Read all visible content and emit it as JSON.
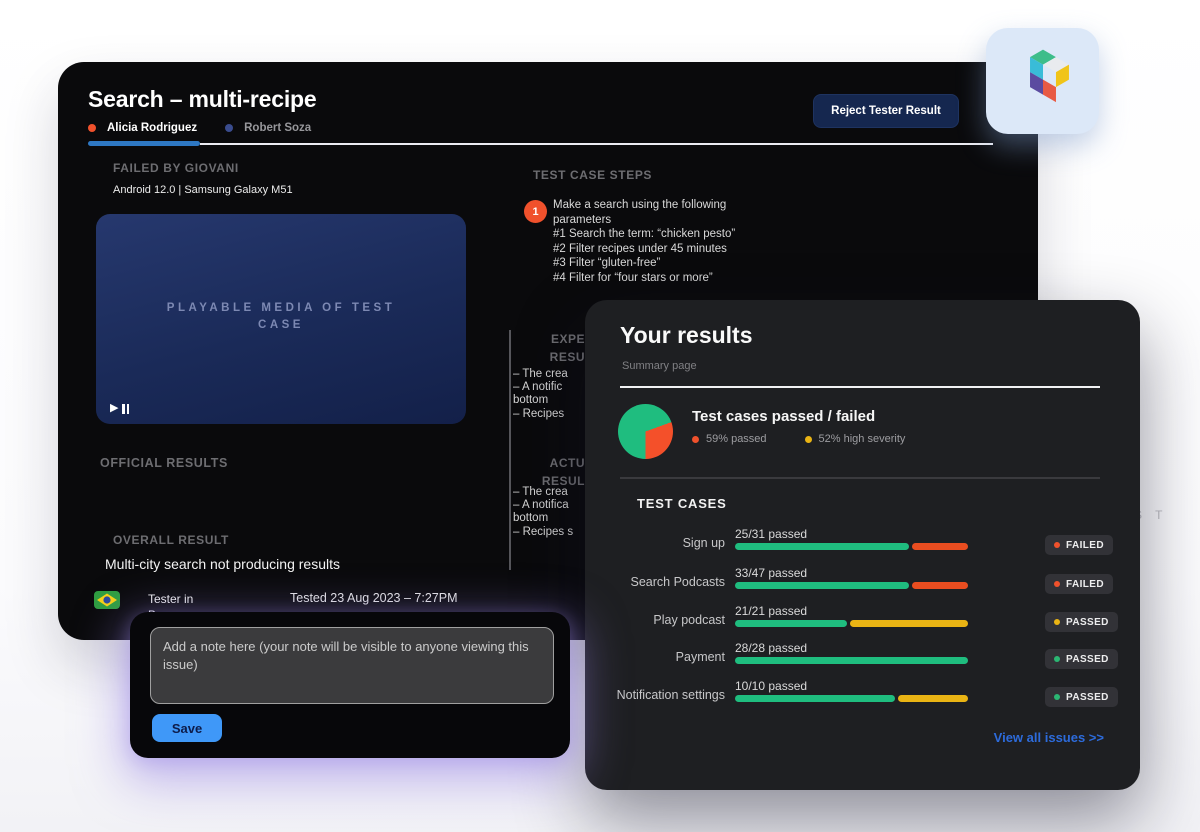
{
  "background_text": "S T",
  "bar_colors": {
    "green": "#1fbd7f",
    "red": "#ea4d20",
    "yellow": "#eab414"
  },
  "main_panel": {
    "title": "Search – multi-recipe",
    "tabs": [
      {
        "label": "Alicia Rodriguez",
        "dot_color": "#f0512c"
      },
      {
        "label": "Robert Soza",
        "dot_color": "#3a4c8e"
      }
    ],
    "reject_button_label": "Reject Tester Result",
    "failed_by_label": "FAILED BY GIOVANI",
    "device_info": "Android 12.0 | Samsung Galaxy M51",
    "media_placeholder": "PLAYABLE MEDIA OF TEST\nCASE",
    "play_glyph": "▶",
    "official_results_label": "OFFICIAL RESULTS",
    "overall_result_label": "OVERALL RESULT",
    "overall_result_text": "Multi-city search not producing results",
    "tester_location": "Tester in\nBr",
    "tested_date": "Tested 23 Aug 2023 – 7:27PM",
    "steps_label": "TEST CASE STEPS",
    "step_number": "1",
    "step_circle_color": "#f0512c",
    "step_text": "Make a search using the following\nparameters\n#1 Search the term: “chicken pesto”\n#2 Filter recipes under 45 minutes\n#3 Filter “gluten-free”\n#4 Filter for “four stars or more”",
    "expected_header": "EXPE\nRESU",
    "expected_bullets": "– The crea\n– A notific\nbottom\n– Recipes",
    "actual_header": "ACTU\nRESUL",
    "actual_bullets": "– The crea\n– A notifica\nbottom\n– Recipes s"
  },
  "results_panel": {
    "title": "Your results",
    "subtitle": "Summary page",
    "chart_heading": "Test cases passed / failed",
    "legend": [
      {
        "label": "59% passed",
        "color": "#f0512c"
      },
      {
        "label": "52% high severity",
        "color": "#eab414"
      }
    ],
    "pie": {
      "base": "#1fbd7f",
      "slice": "#f4502a",
      "start": 70,
      "end": 180
    },
    "test_cases_label": "TEST CASES",
    "rows": [
      {
        "name": "Sign up",
        "passed_text": "25/31 passed",
        "segments": [
          {
            "color": "green",
            "pct": 75
          },
          {
            "color": "red",
            "pct": 24
          }
        ],
        "status": "FAILED",
        "status_dot_color": "#f0512c"
      },
      {
        "name": "Search Podcasts",
        "passed_text": "33/47 passed",
        "segments": [
          {
            "color": "green",
            "pct": 75
          },
          {
            "color": "red",
            "pct": 24
          }
        ],
        "status": "FAILED",
        "status_dot_color": "#f0512c"
      },
      {
        "name": "Play podcast",
        "passed_text": "21/21 passed",
        "segments": [
          {
            "color": "green",
            "pct": 48
          },
          {
            "color": "yellow",
            "pct": 51
          }
        ],
        "status": "PASSED",
        "status_dot_color": "#eab414"
      },
      {
        "name": "Payment",
        "passed_text": "28/28 passed",
        "segments": [
          {
            "color": "green",
            "pct": 100
          }
        ],
        "status": "PASSED",
        "status_dot_color": "#2bb673"
      },
      {
        "name": "Notification settings",
        "passed_text": "10/10 passed",
        "segments": [
          {
            "color": "green",
            "pct": 69
          },
          {
            "color": "yellow",
            "pct": 30
          }
        ],
        "status": "PASSED",
        "status_dot_color": "#2bb673"
      }
    ],
    "view_all_link": "View all issues >>"
  },
  "note_overlay": {
    "placeholder": "Add a note here (your note will be visible to anyone viewing this issue)",
    "save_label": "Save"
  },
  "chart_data": [
    {
      "type": "pie",
      "title": "Test cases passed / failed",
      "slices": [
        {
          "label": "green segment",
          "value": 69,
          "color": "#1fbd7f"
        },
        {
          "label": "orange segment",
          "value": 31,
          "color": "#f4502a"
        }
      ],
      "legend_entries": [
        "59% passed",
        "52% high severity"
      ],
      "legend_position": "right"
    },
    {
      "type": "bar",
      "categories": [
        "Sign up",
        "Search Podcasts",
        "Play podcast",
        "Payment",
        "Notification settings"
      ],
      "series": [
        {
          "name": "passed",
          "values": [
            25,
            33,
            21,
            28,
            10
          ]
        },
        {
          "name": "total",
          "values": [
            31,
            47,
            21,
            28,
            10
          ]
        }
      ],
      "bar_labels": [
        "25/31 passed",
        "33/47 passed",
        "21/21 passed",
        "28/28 passed",
        "10/10 passed"
      ],
      "statuses": [
        "FAILED",
        "FAILED",
        "PASSED",
        "PASSED",
        "PASSED"
      ]
    }
  ]
}
